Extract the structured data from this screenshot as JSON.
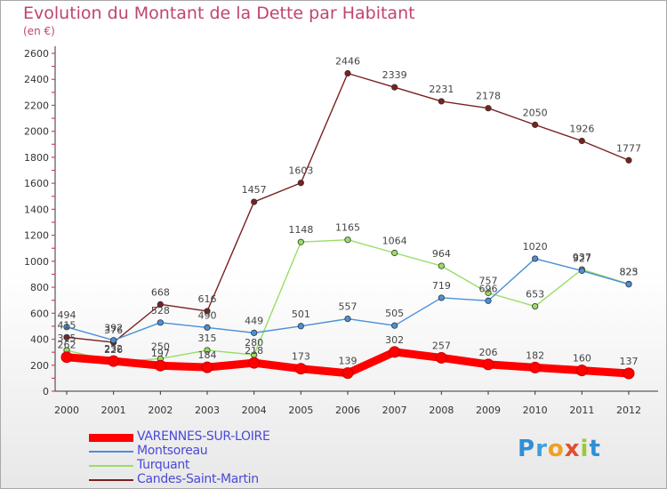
{
  "chart_data": {
    "type": "line",
    "title": "Evolution du Montant de la Dette par Habitant",
    "subtitle": "(en €)",
    "x": [
      "2000",
      "2001",
      "2002",
      "2003",
      "2004",
      "2005",
      "2006",
      "2007",
      "2008",
      "2009",
      "2010",
      "2011",
      "2012"
    ],
    "ylim": [
      0,
      2600
    ],
    "yticks": [
      0,
      200,
      400,
      600,
      800,
      1000,
      1200,
      1400,
      1600,
      1800,
      2000,
      2200,
      2400,
      2600
    ],
    "grid": false,
    "legend_position": "bottom-left",
    "series": [
      {
        "name": "VARENNES-SUR-LOIRE",
        "color": "#ff0000",
        "values": [
          262,
          232,
          197,
          184,
          218,
          173,
          139,
          302,
          257,
          206,
          182,
          160,
          137
        ]
      },
      {
        "name": "Montsoreau",
        "color": "#4a90d9",
        "values": [
          494,
          392,
          528,
          490,
          449,
          501,
          557,
          505,
          719,
          696,
          1020,
          927,
          823
        ]
      },
      {
        "name": "Turquant",
        "color": "#99dd66",
        "values": [
          315,
          226,
          250,
          315,
          280,
          1148,
          1165,
          1064,
          964,
          757,
          653,
          937,
          825
        ]
      },
      {
        "name": "Candes-Saint-Martin",
        "color": "#7a2020",
        "values": [
          415,
          376,
          668,
          616,
          1457,
          1603,
          2446,
          2339,
          2231,
          2178,
          2050,
          1926,
          1777
        ]
      }
    ]
  },
  "logo": {
    "letters": [
      "P",
      "r",
      "o",
      "x",
      "i",
      "t"
    ]
  }
}
